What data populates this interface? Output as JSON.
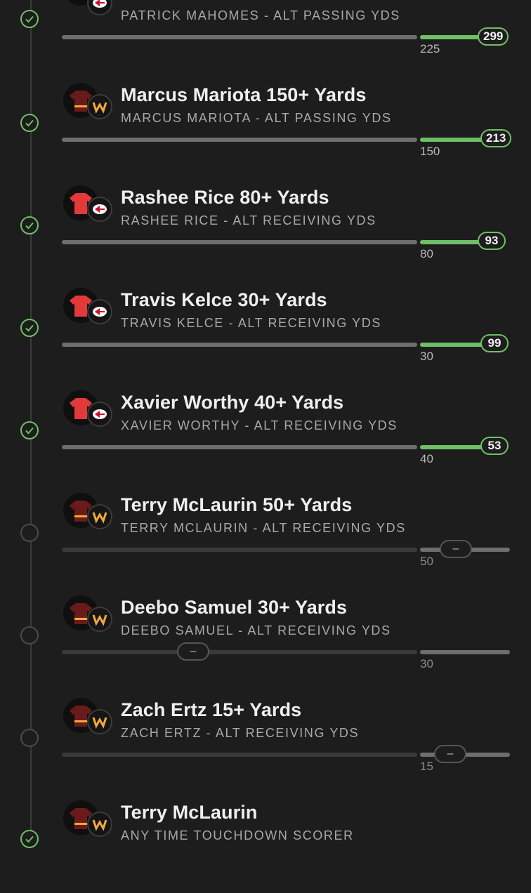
{
  "legs": [
    {
      "title": "",
      "subtitle": "PATRICK MAHOMES - ALT PASSING YDS",
      "line": "225",
      "result": "299",
      "status": "won",
      "team": "kc"
    },
    {
      "title": "Marcus Mariota 150+ Yards",
      "subtitle": "MARCUS MARIOTA - ALT PASSING YDS",
      "line": "150",
      "result": "213",
      "status": "won",
      "team": "was"
    },
    {
      "title": "Rashee Rice 80+ Yards",
      "subtitle": "RASHEE RICE - ALT RECEIVING YDS",
      "line": "80",
      "result": "93",
      "status": "won",
      "team": "kc"
    },
    {
      "title": "Travis Kelce 30+ Yards",
      "subtitle": "TRAVIS KELCE - ALT RECEIVING YDS",
      "line": "30",
      "result": "99",
      "status": "won",
      "team": "kc"
    },
    {
      "title": "Xavier Worthy 40+ Yards",
      "subtitle": "XAVIER WORTHY - ALT RECEIVING YDS",
      "line": "40",
      "result": "53",
      "status": "won",
      "team": "kc"
    },
    {
      "title": "Terry McLaurin 50+ Yards",
      "subtitle": "TERRY MCLAURIN - ALT RECEIVING YDS",
      "line": "50",
      "result": "–",
      "status": "open",
      "team": "was"
    },
    {
      "title": "Deebo Samuel 30+ Yards",
      "subtitle": "DEEBO SAMUEL - ALT RECEIVING YDS",
      "line": "30",
      "result": "–",
      "status": "open",
      "team": "was"
    },
    {
      "title": "Zach Ertz 15+ Yards",
      "subtitle": "ZACH ERTZ - ALT RECEIVING YDS",
      "line": "15",
      "result": "–",
      "status": "open",
      "team": "was"
    },
    {
      "title": "Terry McLaurin",
      "subtitle": "ANY TIME TOUCHDOWN SCORER",
      "line": "",
      "result": "",
      "status": "won",
      "team": "was"
    }
  ],
  "icons": {
    "won": "check-circle-icon",
    "open": "empty-circle-icon",
    "jersey": "jersey-icon",
    "kc": "chiefs-logo-icon",
    "was": "commanders-logo-icon"
  },
  "colors": {
    "accent": "#6fbf66",
    "kc_jersey": "#e23a3a",
    "was_jersey": "#6b1a1a",
    "was_gold": "#f2a93b"
  }
}
